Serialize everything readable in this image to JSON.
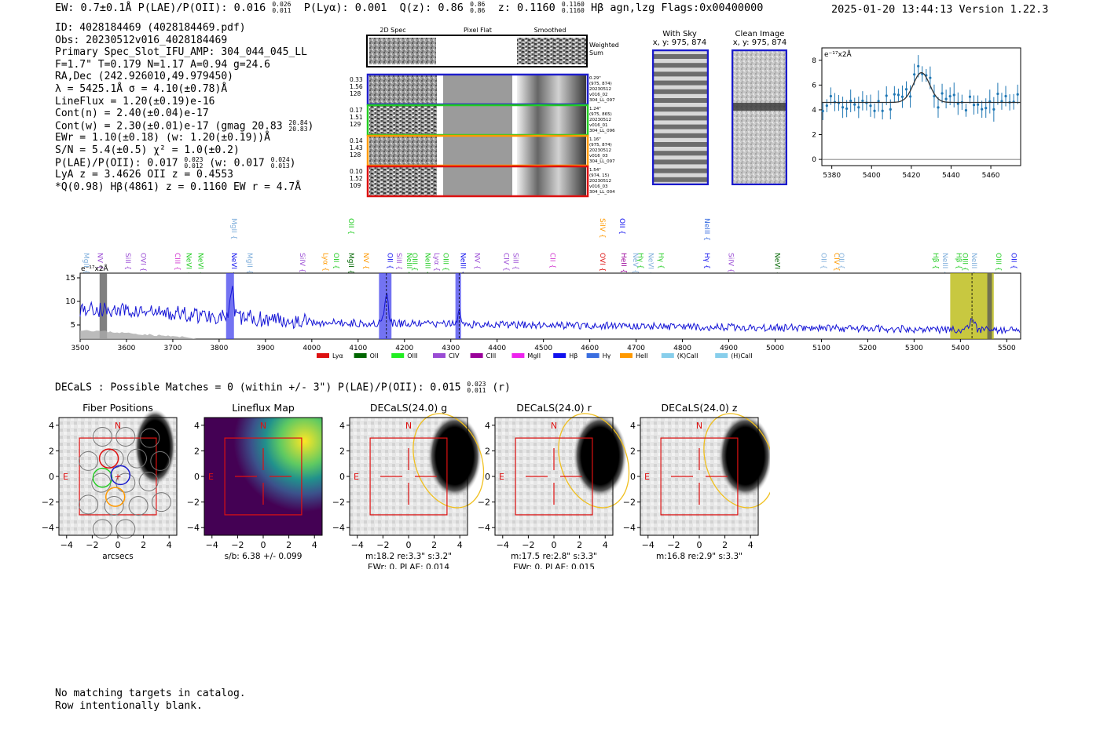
{
  "header": {
    "left": "EW: 0.7±0.1Å  P(LAE)/P(OII): 0.016",
    "ew_plae_hi": "0.026",
    "ew_plae_lo": "0.011",
    "plya": "P(Lyα): 0.001",
    "qz": "Q(z): 0.86",
    "qz_hi": "0.86",
    "qz_lo": "0.86",
    "z": "z: 0.1160",
    "z_hi": "0.1160",
    "z_lo": "0.1160",
    "tail": "Hβ  agn,lzg  Flags:0x00400000",
    "right": "2025-01-20 13:44:13  Version 1.22.3"
  },
  "info": {
    "l1": "ID: 4028184469 (4028184469.pdf)",
    "l2": "Obs: 20230512v016_4028184469",
    "l3": "Primary Spec_Slot_IFU_AMP: 304_044_045_LL",
    "l4": "F=1.7\"  T=0.179  N=1.17  A=0.94  g=24.6",
    "l5": "RA,Dec (242.926010,49.979450)",
    "l6": "λ = 5425.1Å  σ = 4.10(±0.78)Å",
    "l7": "LineFlux = 1.20(±0.19)e-16",
    "l8": "Cont(n) = 2.40(±0.04)e-17",
    "l9": "Cont(w) = 2.30(±0.01)e-17 (gmag 20.83",
    "l9_hi": "20.84",
    "l9_lo": "20.83",
    "l9_end": ")",
    "l10": "EWr = 1.10(±0.18) (w: 1.20(±0.19))Å",
    "l11": "S/N = 5.4(±0.5)  χ² = 1.0(±0.2)",
    "l12": "P(LAE)/P(OII): 0.017",
    "l12_hi": "0.023",
    "l12_lo": "0.012",
    "l12_w": "(w: 0.017",
    "l12_w_hi": "0.024",
    "l12_w_lo": "0.013",
    "l12_end": ")",
    "l13": "LyA z = 3.4626  OII z = 0.4553",
    "l14": "*Q(0.98) Hβ(4861) z = 0.1160  EW r = 4.7Å"
  },
  "cutouts": {
    "col_2d": "2D Spec",
    "col_flat": "Pixel Flat",
    "col_smooth": "Smoothed",
    "weighted": "Weighted",
    "sum": "Sum",
    "rows": [
      {
        "left": [
          "0.33",
          "1.56",
          "128"
        ],
        "right": [
          "0.29\"",
          "(975, 874)",
          "20230512",
          "v016_02",
          "304_LL_097"
        ],
        "color": "#1f1fcc"
      },
      {
        "left": [
          "0.17",
          "1.51",
          "129"
        ],
        "right": [
          "1.24\"",
          "(975, 865)",
          "20230512",
          "v016_01",
          "304_LL_096"
        ],
        "color": "#22cc22"
      },
      {
        "left": [
          "0.14",
          "1.43",
          "128"
        ],
        "right": [
          "1.16\"",
          "(975, 874)",
          "20230512",
          "v016_03",
          "304_LL_097"
        ],
        "color": "#ff9900"
      },
      {
        "left": [
          "0.10",
          "1.52",
          "109"
        ],
        "right": [
          "1.54\"",
          "(974, 15)",
          "20230512",
          "v016_03",
          "304_LL_004"
        ],
        "color": "#dd1111"
      }
    ],
    "with_sky": "With Sky",
    "with_sky_xy": "x, y: 975, 874",
    "clean": "Clean Image",
    "clean_xy": "x, y: 975, 874"
  },
  "fit_chart": {
    "type": "scatter",
    "unit_label": "e⁻¹⁷x2Å",
    "xlim": [
      5375,
      5475
    ],
    "ylim": [
      -0.5,
      9
    ],
    "xticks": [
      "5380",
      "5400",
      "5420",
      "5440",
      "5460"
    ],
    "yticks": [
      "0",
      "2",
      "4",
      "6",
      "8"
    ],
    "model": {
      "amp": 2.4,
      "center": 5425.1,
      "sigma": 4.1,
      "cont": 4.6
    }
  },
  "spectrum": {
    "type": "line",
    "unit_label": "e⁻¹⁷x2Å",
    "xlim": [
      3500,
      5530
    ],
    "ylim": [
      2,
      16
    ],
    "xticks": [
      "3500",
      "3600",
      "3700",
      "3800",
      "3900",
      "4000",
      "4100",
      "4200",
      "4300",
      "4400",
      "4500",
      "4600",
      "4700",
      "4800",
      "4900",
      "5000",
      "5100",
      "5200",
      "5300",
      "5400",
      "5500"
    ],
    "yticks": [
      "5",
      "10",
      "15"
    ],
    "line_labels": [
      {
        "name": "MgII",
        "x": 3503,
        "color": "#7faedb",
        "up": false
      },
      {
        "name": "NV",
        "x": 3533,
        "color": "#9a4cd4",
        "up": false
      },
      {
        "name": "SiII",
        "x": 3593,
        "color": "#9a4cd4",
        "up": false
      },
      {
        "name": "OVI",
        "x": 3626,
        "color": "#9a4cd4",
        "up": false
      },
      {
        "name": "CIII",
        "x": 3700,
        "color": "#d23bd0",
        "up": false
      },
      {
        "name": "NeVI",
        "x": 3725,
        "color": "#22cc22",
        "up": false
      },
      {
        "name": "NeVI",
        "x": 3750,
        "color": "#22cc22",
        "up": false
      },
      {
        "name": "NeVI",
        "x": 3822,
        "color": "#1010ee",
        "up": false
      },
      {
        "name": "MgII",
        "x": 3822,
        "color": "#7faedb",
        "up": true
      },
      {
        "name": "MgII",
        "x": 3856,
        "color": "#7faedb",
        "up": false
      },
      {
        "name": "SiIV",
        "x": 3970,
        "color": "#9a4cd4",
        "up": false
      },
      {
        "name": "Lyα",
        "x": 4020,
        "color": "#ff9900",
        "up": false
      },
      {
        "name": "OII",
        "x": 4043,
        "color": "#22cc22",
        "up": false
      },
      {
        "name": "MgII",
        "x": 4075,
        "color": "#006600",
        "up": false
      },
      {
        "name": "OII",
        "x": 4075,
        "color": "#22cc22",
        "up": true
      },
      {
        "name": "NV",
        "x": 4107,
        "color": "#ff9900",
        "up": false
      },
      {
        "name": "OII",
        "x": 4159,
        "color": "#1010ee",
        "up": false
      },
      {
        "name": "SiII",
        "x": 4178,
        "color": "#9a4cd4",
        "up": false
      },
      {
        "name": "NeIII",
        "x": 4200,
        "color": "#22cc22",
        "up": false
      },
      {
        "name": "OIII",
        "x": 4212,
        "color": "#22cc22",
        "up": false
      },
      {
        "name": "NeIII",
        "x": 4240,
        "color": "#22cc22",
        "up": false
      },
      {
        "name": "Lyα",
        "x": 4260,
        "color": "#9a4cd4",
        "up": false
      },
      {
        "name": "OIII",
        "x": 4279,
        "color": "#22cc22",
        "up": false
      },
      {
        "name": "NeIII",
        "x": 4317,
        "color": "#1010ee",
        "up": false
      },
      {
        "name": "NV",
        "x": 4347,
        "color": "#9a4cd4",
        "up": false
      },
      {
        "name": "CIV",
        "x": 4410,
        "color": "#9a4cd4",
        "up": false
      },
      {
        "name": "SiII",
        "x": 4430,
        "color": "#9a4cd4",
        "up": false
      },
      {
        "name": "CII",
        "x": 4510,
        "color": "#d23bd0",
        "up": false
      },
      {
        "name": "OVI",
        "x": 4618,
        "color": "#dd1111",
        "up": false
      },
      {
        "name": "SiIV",
        "x": 4618,
        "color": "#ff9900",
        "up": true
      },
      {
        "name": "OII",
        "x": 4660,
        "color": "#1010ee",
        "up": true
      },
      {
        "name": "HeII",
        "x": 4663,
        "color": "#990099",
        "up": false
      },
      {
        "name": "NeV",
        "x": 4689,
        "color": "#7faedb",
        "up": false
      },
      {
        "name": "Hγ",
        "x": 4700,
        "color": "#22cc22",
        "up": false
      },
      {
        "name": "NeVI",
        "x": 4722,
        "color": "#7faedb",
        "up": false
      },
      {
        "name": "Hγ",
        "x": 4744,
        "color": "#22cc22",
        "up": false
      },
      {
        "name": "NeIII",
        "x": 4843,
        "color": "#3a6ee0",
        "up": true
      },
      {
        "name": "Hγ",
        "x": 4843,
        "color": "#1010ee",
        "up": false
      },
      {
        "name": "SiIV",
        "x": 4895,
        "color": "#9a4cd4",
        "up": false
      },
      {
        "name": "NeVI",
        "x": 4995,
        "color": "#006600",
        "up": false
      },
      {
        "name": "OII",
        "x": 5095,
        "color": "#7faedb",
        "up": false
      },
      {
        "name": "CIV",
        "x": 5123,
        "color": "#ff9900",
        "up": false
      },
      {
        "name": "OII",
        "x": 5133,
        "color": "#7faedb",
        "up": false
      },
      {
        "name": "Hβ",
        "x": 5337,
        "color": "#22cc22",
        "up": false
      },
      {
        "name": "NeIII",
        "x": 5357,
        "color": "#7faedb",
        "up": false
      },
      {
        "name": "Hβ",
        "x": 5387,
        "color": "#22cc22",
        "up": false
      },
      {
        "name": "NeIII",
        "x": 5420,
        "color": "#7faedb",
        "up": false
      },
      {
        "name": "OIII",
        "x": 5400,
        "color": "#22cc22",
        "up": false
      },
      {
        "name": "OIII",
        "x": 5472,
        "color": "#22cc22",
        "up": false
      },
      {
        "name": "OII",
        "x": 5505,
        "color": "#1010ee",
        "up": false
      }
    ],
    "legend": [
      {
        "label": "Lyα",
        "color": "#dd1111"
      },
      {
        "label": "OII",
        "color": "#006600"
      },
      {
        "label": "OIII",
        "color": "#22ee22"
      },
      {
        "label": "CIV",
        "color": "#9a4cd4"
      },
      {
        "label": "CIII",
        "color": "#990099"
      },
      {
        "label": "MgII",
        "color": "#ee22ee"
      },
      {
        "label": "Hβ",
        "color": "#1010ee"
      },
      {
        "label": "Hγ",
        "color": "#3a6ee0"
      },
      {
        "label": "HeII",
        "color": "#ff9900"
      },
      {
        "label": "(K)CaII",
        "color": "#87ceeb"
      },
      {
        "label": "(H)CaII",
        "color": "#87ceeb"
      }
    ],
    "bands": [
      {
        "lo": 3542,
        "hi": 3558,
        "color": "#555555"
      },
      {
        "lo": 3815,
        "hi": 3832,
        "color": "#4444ee"
      },
      {
        "lo": 4145,
        "hi": 4172,
        "color": "#4444ee"
      },
      {
        "lo": 4310,
        "hi": 4322,
        "color": "#4444ee"
      },
      {
        "lo": 5378,
        "hi": 5472,
        "color": "#b5b500"
      },
      {
        "lo": 5458,
        "hi": 5468,
        "color": "#555555"
      }
    ]
  },
  "decals": {
    "line": "DECaLS : Possible Matches = 0 (within +/- 3\")  P(LAE)/P(OII): 0.015",
    "hi": "0.023",
    "lo": "0.011",
    "end": "(r)",
    "panels": [
      {
        "title": "Fiber Positions",
        "cap1": "arcsecs",
        "cap2": ""
      },
      {
        "title": "Lineflux Map",
        "cap1": "s/b: 6.38 +/- 0.099",
        "cap2": ""
      },
      {
        "title": "DECaLS(24.0) g",
        "cap1": "m:18.2  re:3.3\"  s:3.2\"",
        "cap2": "EWr: 0, PLAE: 0.014"
      },
      {
        "title": "DECaLS(24.0) r",
        "cap1": "m:17.5  re:2.8\"  s:3.3\"",
        "cap2": "EWr: 0, PLAE: 0.015"
      },
      {
        "title": "DECaLS(24.0) z",
        "cap1": "m:16.8  re:2.9\"  s:3.3\"",
        "cap2": ""
      }
    ],
    "ticks": [
      "−4",
      "−2",
      "0",
      "2",
      "4"
    ],
    "north": "N",
    "east": "E"
  },
  "footer": {
    "l1": "No matching targets in catalog.",
    "l2": "Row intentionally blank."
  }
}
